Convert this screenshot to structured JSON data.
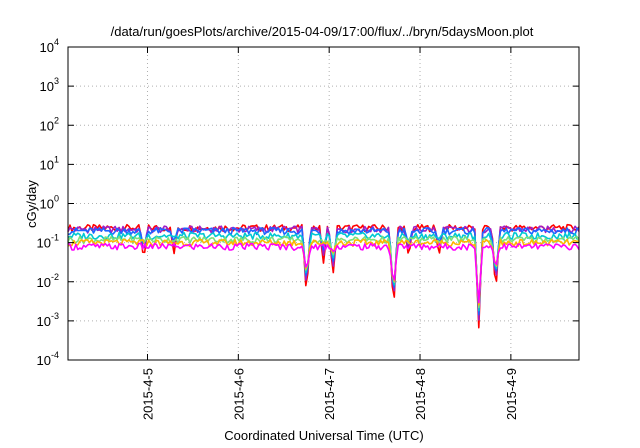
{
  "chart_data": {
    "type": "line",
    "title": "/data/run/goesPlots/archive/2015-04-09/17:00/flux/../bryn/5daysMoon.plot",
    "xlabel": "Coordinated Universal Time (UTC)",
    "ylabel": "cGy/day",
    "yscale": "log",
    "ylim": [
      0.0001,
      10000
    ],
    "xlim": [
      "2015-04-04 03:00",
      "2015-04-09 18:00"
    ],
    "grid": true,
    "x_ticks": [
      "2015-4-5",
      "2015-4-6",
      "2015-4-7",
      "2015-4-8",
      "2015-4-9"
    ],
    "y_ticks": [
      {
        "base": "10",
        "exp": "4",
        "value": 10000
      },
      {
        "base": "10",
        "exp": "3",
        "value": 1000
      },
      {
        "base": "10",
        "exp": "2",
        "value": 100
      },
      {
        "base": "10",
        "exp": "1",
        "value": 10
      },
      {
        "base": "10",
        "exp": "0",
        "value": 1
      },
      {
        "base": "10",
        "exp": "-1",
        "value": 0.1
      },
      {
        "base": "10",
        "exp": "-2",
        "value": 0.01
      },
      {
        "base": "10",
        "exp": "-3",
        "value": 0.001
      },
      {
        "base": "10",
        "exp": "-4",
        "value": 0.0001
      }
    ],
    "series_colors": [
      "#ff0000",
      "#a01ec8",
      "#1e64ff",
      "#00c8d2",
      "#7be07b",
      "#ffb400",
      "#ff00ff"
    ],
    "series_base_levels": [
      0.24,
      0.22,
      0.2,
      0.15,
      0.12,
      0.1,
      0.08
    ],
    "dips": [
      {
        "time": "2015-04-06 18:00",
        "value": 0.004
      },
      {
        "time": "2015-04-06 22:30",
        "value": 0.03
      },
      {
        "time": "2015-04-07 01:00",
        "value": 0.013
      },
      {
        "time": "2015-04-07 17:00",
        "value": 0.0016
      },
      {
        "time": "2015-04-08 15:30",
        "value": 0.0006
      },
      {
        "time": "2015-04-08 20:00",
        "value": 0.005
      },
      {
        "time": "2015-04-04 23:00",
        "value": 0.035
      },
      {
        "time": "2015-04-05 07:00",
        "value": 0.05
      },
      {
        "time": "2015-04-07 21:00",
        "value": 0.04
      },
      {
        "time": "2015-04-08 05:00",
        "value": 0.045
      }
    ]
  }
}
